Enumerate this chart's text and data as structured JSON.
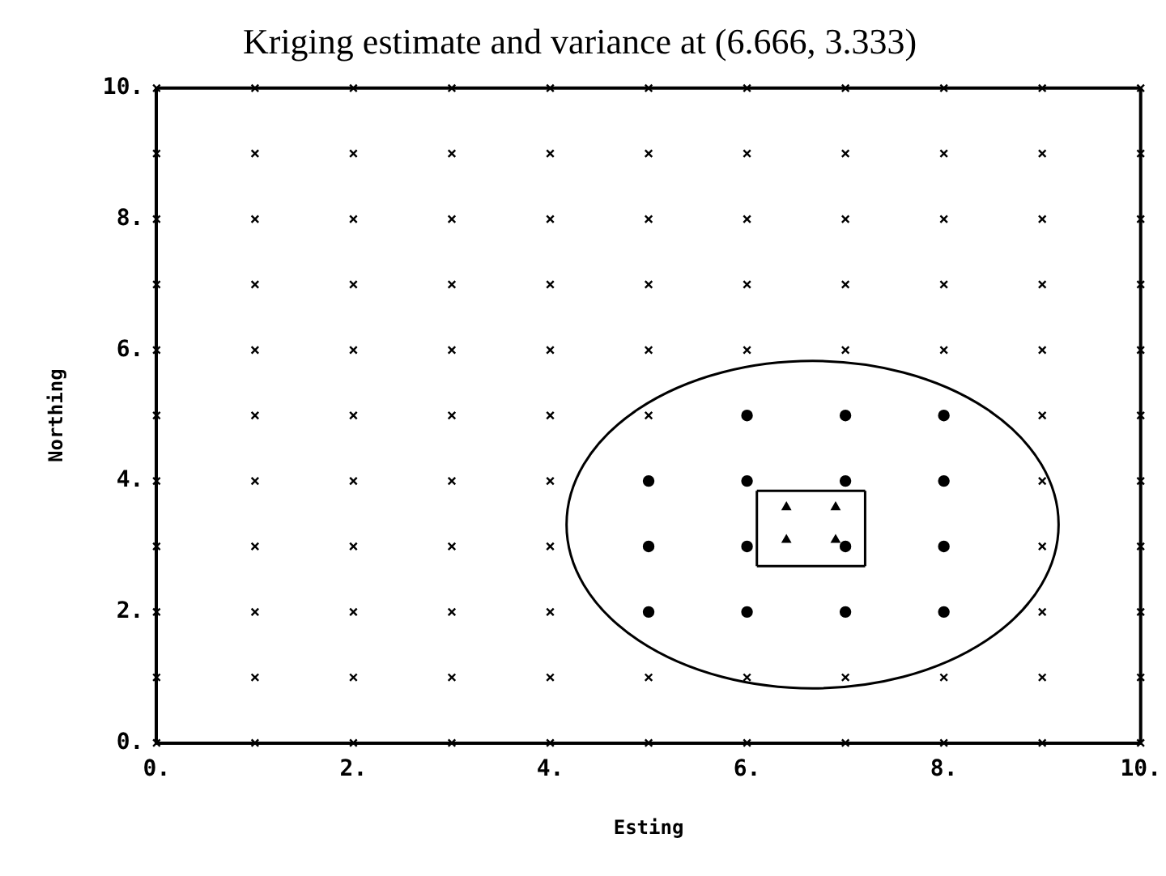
{
  "chart_data": {
    "type": "scatter",
    "title": "Kriging estimate and variance at (6.666, 3.333)",
    "xlabel": "Esting",
    "ylabel": "Northing",
    "xlim": [
      0,
      10
    ],
    "ylim": [
      0,
      10
    ],
    "xticks": [
      {
        "value": 0,
        "label": "0."
      },
      {
        "value": 2,
        "label": "2."
      },
      {
        "value": 4,
        "label": "4."
      },
      {
        "value": 6,
        "label": "6."
      },
      {
        "value": 8,
        "label": "8."
      },
      {
        "value": 10,
        "label": "10."
      }
    ],
    "yticks": [
      {
        "value": 0,
        "label": "0."
      },
      {
        "value": 2,
        "label": "2."
      },
      {
        "value": 4,
        "label": "4."
      },
      {
        "value": 6,
        "label": "6."
      },
      {
        "value": 8,
        "label": "8."
      },
      {
        "value": 10,
        "label": "10."
      }
    ],
    "grid": false,
    "legend": false,
    "series": [
      {
        "type": "scatter",
        "marker": "cross",
        "color": "#000000",
        "x": [
          0,
          1,
          2,
          3,
          4,
          5,
          6,
          7,
          8,
          9,
          10,
          0,
          1,
          2,
          3,
          4,
          5,
          6,
          7,
          8,
          9,
          10,
          0,
          1,
          2,
          3,
          4,
          9,
          10,
          0,
          1,
          2,
          3,
          4,
          9,
          10,
          0,
          1,
          2,
          3,
          4,
          9,
          10,
          0,
          1,
          2,
          3,
          4,
          5,
          9,
          10,
          0,
          1,
          2,
          3,
          4,
          5,
          6,
          7,
          8,
          9,
          10,
          0,
          1,
          2,
          3,
          4,
          5,
          6,
          7,
          8,
          9,
          10,
          0,
          1,
          2,
          3,
          4,
          5,
          6,
          7,
          8,
          9,
          10,
          0,
          1,
          2,
          3,
          4,
          5,
          6,
          7,
          8,
          9,
          10,
          0,
          1,
          2,
          3,
          4,
          5,
          6,
          7,
          8,
          9,
          10
        ],
        "values": [
          0,
          0,
          0,
          0,
          0,
          0,
          0,
          0,
          0,
          0,
          0,
          1,
          1,
          1,
          1,
          1,
          1,
          1,
          1,
          1,
          1,
          1,
          2,
          2,
          2,
          2,
          2,
          2,
          2,
          3,
          3,
          3,
          3,
          3,
          3,
          3,
          4,
          4,
          4,
          4,
          4,
          4,
          4,
          5,
          5,
          5,
          5,
          5,
          5,
          5,
          5,
          6,
          6,
          6,
          6,
          6,
          6,
          6,
          6,
          6,
          6,
          6,
          7,
          7,
          7,
          7,
          7,
          7,
          7,
          7,
          7,
          7,
          7,
          8,
          8,
          8,
          8,
          8,
          8,
          8,
          8,
          8,
          8,
          8,
          9,
          9,
          9,
          9,
          9,
          9,
          9,
          9,
          9,
          9,
          9,
          10,
          10,
          10,
          10,
          10,
          10,
          10,
          10,
          10,
          10,
          10
        ]
      },
      {
        "type": "scatter",
        "marker": "circle",
        "color": "#000000",
        "x": [
          6,
          7,
          8,
          5,
          6,
          7,
          8,
          5,
          6,
          7,
          8,
          5,
          6,
          7,
          8
        ],
        "values": [
          5,
          5,
          5,
          4,
          4,
          4,
          4,
          3,
          3,
          3,
          3,
          2,
          2,
          2,
          2
        ]
      },
      {
        "type": "scatter",
        "marker": "triangle",
        "color": "#000000",
        "x": [
          6.4,
          6.9,
          6.4,
          6.9
        ],
        "values": [
          3.6,
          3.6,
          3.1,
          3.1
        ]
      },
      {
        "type": "line",
        "marker": "none",
        "color": "#000000",
        "x": [
          6.1,
          7.2
        ],
        "values": [
          3.85,
          3.85
        ]
      },
      {
        "type": "line",
        "marker": "none",
        "color": "#000000",
        "x": [
          6.1,
          7.2
        ],
        "values": [
          2.7,
          2.7
        ]
      },
      {
        "type": "line",
        "marker": "none",
        "color": "#000000",
        "x": [
          6.1,
          6.1
        ],
        "values": [
          2.7,
          3.85
        ]
      },
      {
        "type": "line",
        "marker": "none",
        "color": "#000000",
        "x": [
          7.2,
          7.2
        ],
        "values": [
          2.7,
          3.85
        ]
      }
    ]
  }
}
